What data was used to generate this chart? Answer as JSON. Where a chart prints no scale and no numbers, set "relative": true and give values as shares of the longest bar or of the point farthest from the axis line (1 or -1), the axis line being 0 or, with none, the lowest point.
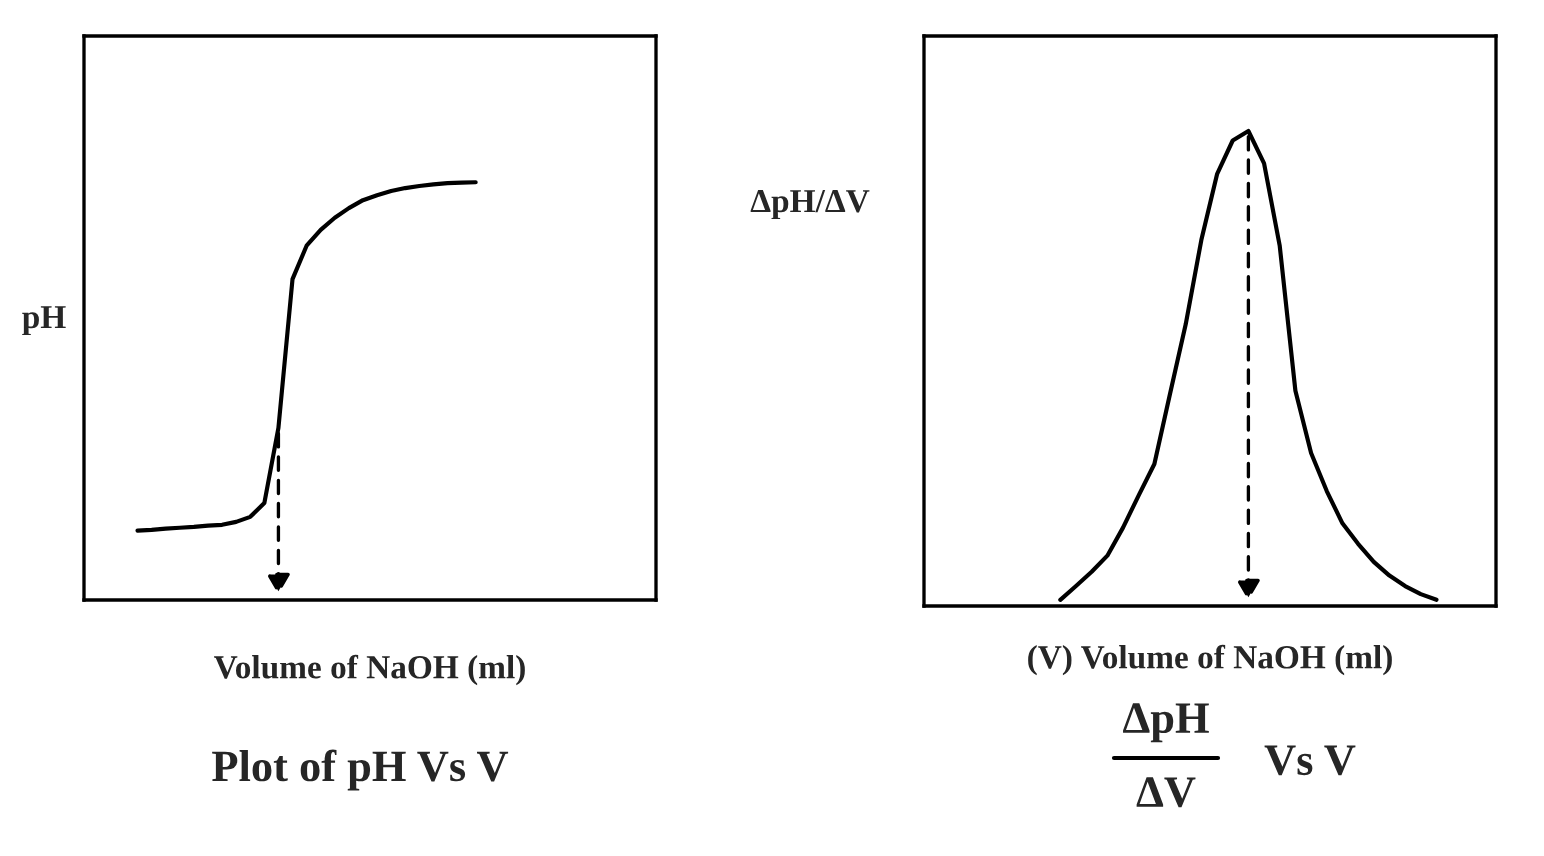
{
  "chart_data": [
    {
      "type": "line",
      "relative": true,
      "ylabel": "pH",
      "xlabel": "Volume of NaOH (ml)",
      "annotations": [
        "Plot of pH Vs V"
      ],
      "marker": "none",
      "line_style": "solid",
      "categories": [
        null,
        null,
        null,
        null,
        null,
        null,
        null,
        null,
        null,
        null,
        null,
        null,
        null,
        null,
        null,
        null,
        null,
        null,
        null,
        null,
        null,
        null,
        null,
        null,
        null
      ],
      "series": [
        {
          "color": "#000000",
          "values": [
            0.166,
            0.168,
            0.171,
            0.173,
            0.175,
            0.178,
            0.18,
            0.187,
            0.199,
            0.232,
            0.412,
            0.768,
            0.848,
            0.886,
            0.915,
            0.938,
            0.957,
            0.969,
            0.979,
            0.986,
            0.991,
            0.995,
            0.998,
            0.999,
            1
          ]
        }
      ]
    },
    {
      "type": "line",
      "relative": true,
      "ylabel": "ΔpH/ΔV",
      "xlabel": "(V) Volume of NaOH (ml)",
      "annotations": [
        "ΔpH",
        "ΔV",
        "Vs V"
      ],
      "marker": "none",
      "line_style": "solid",
      "categories": [
        null,
        null,
        null,
        null,
        null,
        null,
        null,
        null,
        null,
        null,
        null,
        null,
        null,
        null,
        null,
        null,
        null,
        null,
        null,
        null,
        null,
        null,
        null,
        null,
        null
      ],
      "series": [
        {
          "color": "#000000",
          "values": [
            0.013,
            0.042,
            0.072,
            0.106,
            0.165,
            0.233,
            0.299,
            0.447,
            0.593,
            0.771,
            0.909,
            0.98,
            1,
            0.932,
            0.758,
            0.453,
            0.322,
            0.242,
            0.174,
            0.131,
            0.093,
            0.064,
            0.042,
            0.025,
            0.013
          ]
        }
      ]
    }
  ]
}
